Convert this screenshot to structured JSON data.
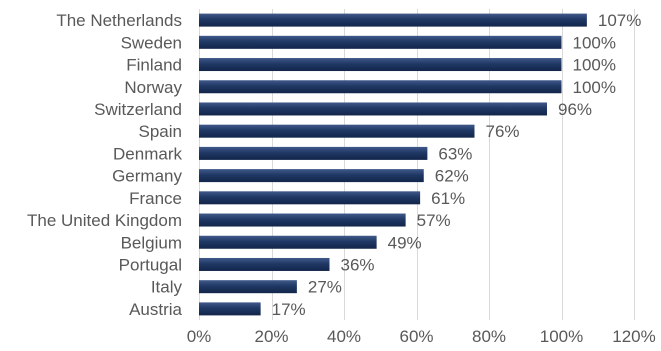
{
  "chart_data": {
    "type": "bar",
    "orientation": "horizontal",
    "title": "",
    "xlabel": "",
    "ylabel": "",
    "categories": [
      "The Netherlands",
      "Sweden",
      "Finland",
      "Norway",
      "Switzerland",
      "Spain",
      "Denmark",
      "Germany",
      "France",
      "The United Kingdom",
      "Belgium",
      "Portugal",
      "Italy",
      "Austria"
    ],
    "values": [
      107,
      100,
      100,
      100,
      96,
      76,
      63,
      62,
      61,
      57,
      49,
      36,
      27,
      17
    ],
    "value_labels": [
      "107%",
      "100%",
      "100%",
      "100%",
      "96%",
      "76%",
      "63%",
      "62%",
      "61%",
      "57%",
      "49%",
      "36%",
      "27%",
      "17%"
    ],
    "xlim": [
      0,
      120
    ],
    "x_ticks": [
      0,
      20,
      40,
      60,
      80,
      100,
      120
    ],
    "x_tick_labels": [
      "0%",
      "20%",
      "40%",
      "60%",
      "80%",
      "100%",
      "120%"
    ],
    "grid": "vertical",
    "legend": "none",
    "bar_color": "#1f3864"
  }
}
